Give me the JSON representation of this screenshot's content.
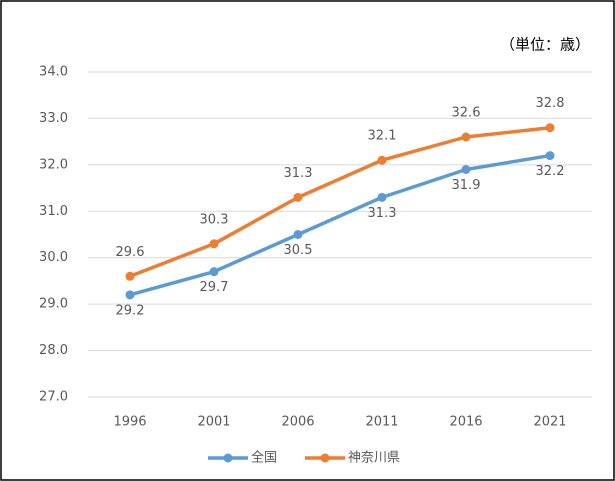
{
  "chart_data": {
    "type": "line",
    "annotation": "（単位：歳）",
    "categories": [
      "1996",
      "2001",
      "2006",
      "2011",
      "2016",
      "2021"
    ],
    "series": [
      {
        "name": "全国",
        "color": "#5b9bd5",
        "values": [
          29.2,
          29.7,
          30.5,
          31.3,
          31.9,
          32.2
        ],
        "label_position": "below"
      },
      {
        "name": "神奈川県",
        "color": "#ed7d31",
        "values": [
          29.6,
          30.3,
          31.3,
          32.1,
          32.6,
          32.8
        ],
        "label_position": "above"
      }
    ],
    "ylim": [
      27,
      34
    ],
    "yticks": [
      {
        "value": 27,
        "label": "27.0"
      },
      {
        "value": 28,
        "label": "28.0"
      },
      {
        "value": 29,
        "label": "29.0"
      },
      {
        "value": 30,
        "label": "30.0"
      },
      {
        "value": 31,
        "label": "31.0"
      },
      {
        "value": 32,
        "label": "32.0"
      },
      {
        "value": 33,
        "label": "33.0"
      },
      {
        "value": 34,
        "label": "34.0"
      }
    ],
    "grid": true,
    "legend": "bottom"
  }
}
